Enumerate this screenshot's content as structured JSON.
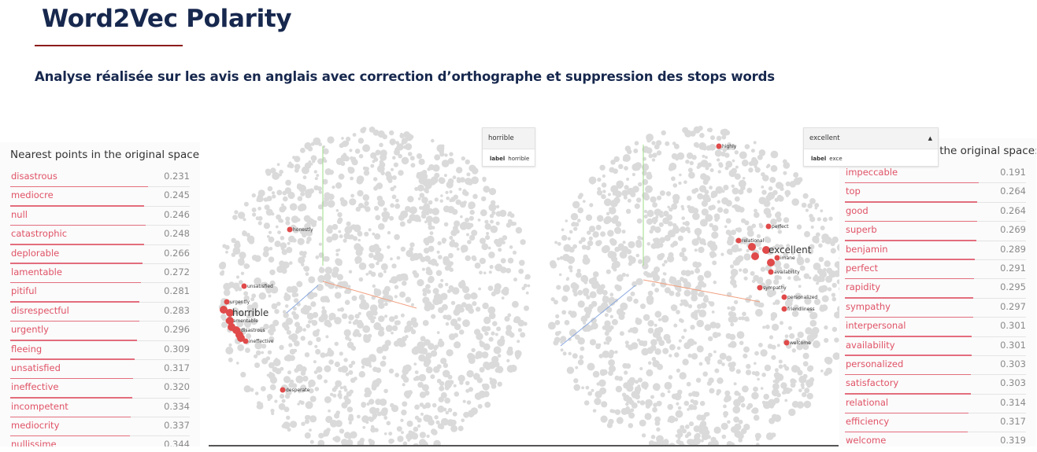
{
  "header": {
    "title": "Word2Vec Polarity",
    "subtitle": "Analyse réalisée sur les avis en anglais avec correction d’orthographe et suppression des stops words"
  },
  "left_panel": {
    "heading": "Nearest points in the original space:",
    "items": [
      {
        "word": "disastrous",
        "value": "0.231"
      },
      {
        "word": "mediocre",
        "value": "0.245"
      },
      {
        "word": "null",
        "value": "0.246"
      },
      {
        "word": "catastrophic",
        "value": "0.248"
      },
      {
        "word": "deplorable",
        "value": "0.266"
      },
      {
        "word": "lamentable",
        "value": "0.272"
      },
      {
        "word": "pitiful",
        "value": "0.281"
      },
      {
        "word": "disrespectful",
        "value": "0.283"
      },
      {
        "word": "urgently",
        "value": "0.296"
      },
      {
        "word": "fleeing",
        "value": "0.309"
      },
      {
        "word": "unsatisfied",
        "value": "0.317"
      },
      {
        "word": "ineffective",
        "value": "0.320"
      },
      {
        "word": "incompetent",
        "value": "0.334"
      },
      {
        "word": "mediocrity",
        "value": "0.337"
      },
      {
        "word": "nullissime",
        "value": "0.344"
      }
    ]
  },
  "right_panel": {
    "heading": "Nearest points in the original space:",
    "items": [
      {
        "word": "impeccable",
        "value": "0.191"
      },
      {
        "word": "top",
        "value": "0.264"
      },
      {
        "word": "good",
        "value": "0.264"
      },
      {
        "word": "superb",
        "value": "0.269"
      },
      {
        "word": "benjamin",
        "value": "0.289"
      },
      {
        "word": "perfect",
        "value": "0.291"
      },
      {
        "word": "rapidity",
        "value": "0.295"
      },
      {
        "word": "sympathy",
        "value": "0.297"
      },
      {
        "word": "interpersonal",
        "value": "0.301"
      },
      {
        "word": "availability",
        "value": "0.301"
      },
      {
        "word": "personalized",
        "value": "0.303"
      },
      {
        "word": "satisfactory",
        "value": "0.303"
      },
      {
        "word": "relational",
        "value": "0.314"
      },
      {
        "word": "efficiency",
        "value": "0.317"
      },
      {
        "word": "welcome",
        "value": "0.319"
      }
    ]
  },
  "left_viz": {
    "search_value": "horrible",
    "label_key": "label",
    "label_value": "horrible",
    "selected_word": "horrible",
    "point_labels": [
      "honestly",
      "unsatisfied",
      "urgently",
      "lamentable",
      "disastrous",
      "ineffective",
      "desperate"
    ]
  },
  "right_viz": {
    "search_value": "excellent",
    "label_key": "label",
    "label_value": "exce",
    "selected_word": "excellent",
    "point_labels": [
      "highly",
      "perfect",
      "relational",
      "imane",
      "availability",
      "sympathy",
      "personalized",
      "friendliness",
      "welcome"
    ]
  },
  "colors": {
    "title": "#17284e",
    "accent_rule": "#8c1b1b",
    "neighbor_text": "#e05266",
    "highlight_point": "#e04a4a",
    "background_point": "#dadada"
  }
}
